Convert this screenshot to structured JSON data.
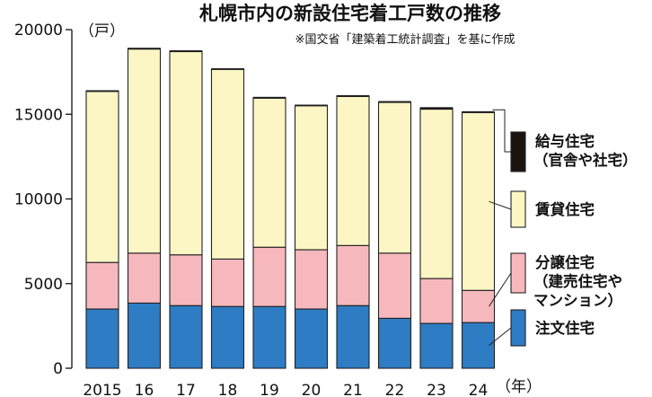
{
  "chart_data": {
    "type": "bar",
    "stacked": true,
    "title": "札幌市内の新設住宅着工戸数の推移",
    "note": "※国交省「建築着工統計調査」を基に作成",
    "ylabel_unit": "（戸）",
    "xlabel_unit": "（年）",
    "categories": [
      "2015",
      "16",
      "17",
      "18",
      "19",
      "20",
      "21",
      "22",
      "23",
      "24"
    ],
    "ylim": [
      0,
      20000
    ],
    "yticks": [
      "0",
      "5000",
      "10000",
      "15000",
      "20000"
    ],
    "grid": false,
    "legend_position": "right",
    "series": [
      {
        "name": "注文住宅",
        "color": "#2e7cc4",
        "values": [
          3500,
          3850,
          3700,
          3650,
          3650,
          3500,
          3700,
          2950,
          2650,
          2700
        ]
      },
      {
        "name": "分譲住宅（建売住宅やマンション）",
        "color": "#f7b8bd",
        "values": [
          2750,
          2950,
          3000,
          2800,
          3500,
          3500,
          3550,
          3850,
          2650,
          1900
        ]
      },
      {
        "name": "賃貸住宅",
        "color": "#fbf6c4",
        "values": [
          10100,
          12050,
          12000,
          11200,
          8800,
          8500,
          8800,
          8900,
          10000,
          10500
        ]
      },
      {
        "name": "給与住宅（官舎や社宅）",
        "color": "#1a1410",
        "values": [
          50,
          60,
          60,
          50,
          60,
          50,
          60,
          60,
          100,
          60
        ]
      }
    ]
  }
}
